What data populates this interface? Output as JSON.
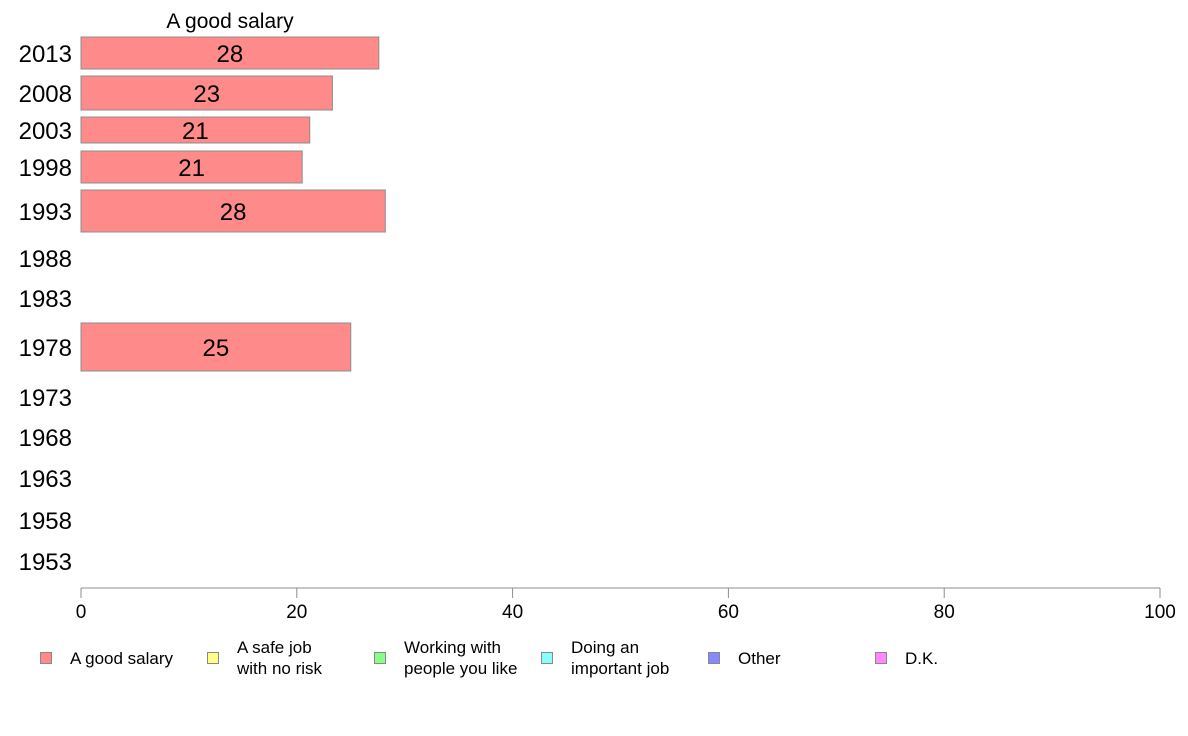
{
  "chart_data": {
    "type": "bar",
    "orientation": "horizontal",
    "title": "A good salary",
    "xlabel": "",
    "ylabel": "",
    "xlim": [
      0,
      100
    ],
    "x_ticks": [
      "0",
      "20",
      "40",
      "60",
      "80",
      "100"
    ],
    "categories": [
      "2013",
      "2008",
      "2003",
      "1998",
      "1993",
      "1988",
      "1983",
      "1978",
      "1973",
      "1968",
      "1963",
      "1958",
      "1953"
    ],
    "values": [
      28,
      23,
      21,
      21,
      28,
      null,
      null,
      25,
      null,
      null,
      null,
      null,
      null
    ],
    "value_labels": [
      "28",
      "23",
      "21",
      "21",
      "28",
      "",
      "",
      "25",
      "",
      "",
      "",
      "",
      ""
    ],
    "plotted_values": [
      27.6,
      23.3,
      21.2,
      20.5,
      28.2,
      null,
      null,
      25.0,
      null,
      null,
      null,
      null,
      null
    ],
    "bar_color": "#ff8a8a",
    "bar_edge_color": "#8c8c8c",
    "grid": false,
    "legend_position": "bottom",
    "legend": [
      {
        "label": "A good salary",
        "color": "#ff8a8a"
      },
      {
        "label": "A safe job\nwith no risk",
        "color": "#ffff88"
      },
      {
        "label": "Working with\npeople you like",
        "color": "#88ff88"
      },
      {
        "label": "Doing an\nimportant job",
        "color": "#88ffff"
      },
      {
        "label": "Other",
        "color": "#8888ff"
      },
      {
        "label": "D.K.",
        "color": "#ff88ff"
      }
    ]
  }
}
